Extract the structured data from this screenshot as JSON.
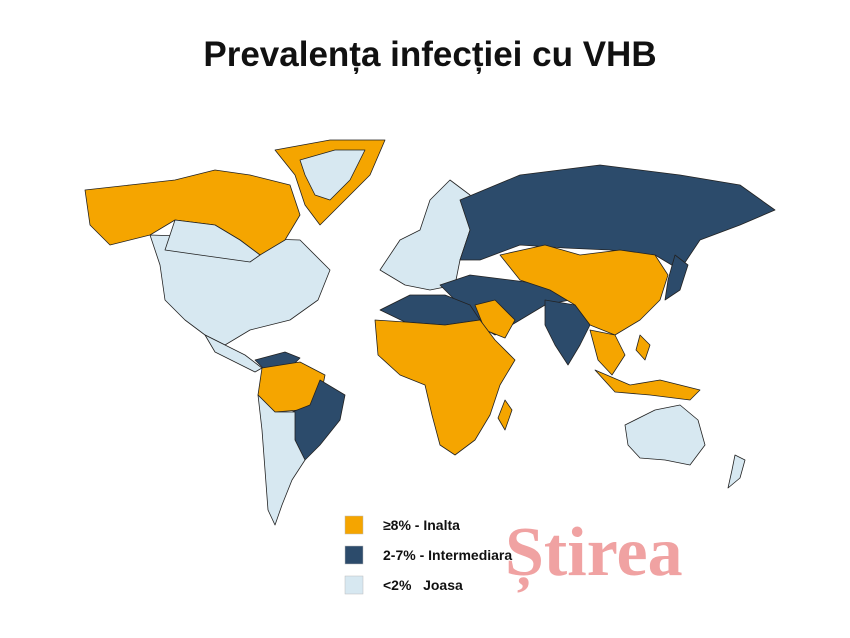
{
  "title": "Prevalența  infecției cu VHB",
  "legend": [
    {
      "label": "≥8% - Inalta",
      "color": "#f5a500"
    },
    {
      "label": "2-7% - Intermediara",
      "color": "#2c4b6b"
    },
    {
      "label": "<2%   Joasa",
      "color": "#d7e8f1"
    }
  ],
  "watermark": "Știrea"
}
